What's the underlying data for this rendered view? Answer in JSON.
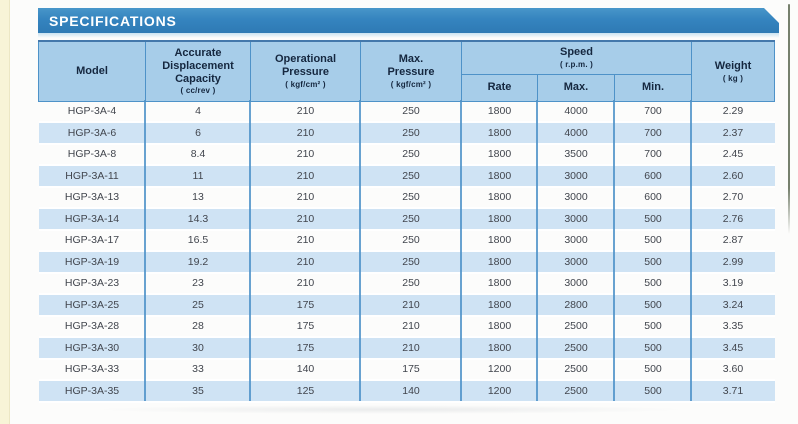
{
  "banner": {
    "title": "SPECIFICATIONS"
  },
  "colors": {
    "banner_blue": "#3584bf",
    "header_bg": "#a7cde9",
    "row_alt_bg": "#cfe3f4",
    "grid_line": "#4e92c8",
    "header_text": "#15273f",
    "left_stripe": "#f8f4d7"
  },
  "table": {
    "column_keys": [
      "model",
      "capacity",
      "operational-pressure",
      "max-pressure",
      "speed-rate",
      "speed-max",
      "speed-min",
      "weight"
    ],
    "header": {
      "model": "Model",
      "capacity": "Accurate\nDisplacement\nCapacity",
      "capacity_unit": "( cc/rev )",
      "operational_pressure": "Operational\nPressure",
      "operational_pressure_unit": "( kgf/cm² )",
      "max_pressure": "Max.\nPressure",
      "max_pressure_unit": "( kgf/cm² )",
      "speed": "Speed",
      "speed_unit": "( r.p.m. )",
      "speed_rate": "Rate",
      "speed_max": "Max.",
      "speed_min": "Min.",
      "weight": "Weight",
      "weight_unit": "( kg )"
    },
    "rows": [
      [
        "HGP-3A-4",
        "4",
        "210",
        "250",
        "1800",
        "4000",
        "700",
        "2.29"
      ],
      [
        "HGP-3A-6",
        "6",
        "210",
        "250",
        "1800",
        "4000",
        "700",
        "2.37"
      ],
      [
        "HGP-3A-8",
        "8.4",
        "210",
        "250",
        "1800",
        "3500",
        "700",
        "2.45"
      ],
      [
        "HGP-3A-11",
        "11",
        "210",
        "250",
        "1800",
        "3000",
        "600",
        "2.60"
      ],
      [
        "HGP-3A-13",
        "13",
        "210",
        "250",
        "1800",
        "3000",
        "600",
        "2.70"
      ],
      [
        "HGP-3A-14",
        "14.3",
        "210",
        "250",
        "1800",
        "3000",
        "500",
        "2.76"
      ],
      [
        "HGP-3A-17",
        "16.5",
        "210",
        "250",
        "1800",
        "3000",
        "500",
        "2.87"
      ],
      [
        "HGP-3A-19",
        "19.2",
        "210",
        "250",
        "1800",
        "3000",
        "500",
        "2.99"
      ],
      [
        "HGP-3A-23",
        "23",
        "210",
        "250",
        "1800",
        "3000",
        "500",
        "3.19"
      ],
      [
        "HGP-3A-25",
        "25",
        "175",
        "210",
        "1800",
        "2800",
        "500",
        "3.24"
      ],
      [
        "HGP-3A-28",
        "28",
        "175",
        "210",
        "1800",
        "2500",
        "500",
        "3.35"
      ],
      [
        "HGP-3A-30",
        "30",
        "175",
        "210",
        "1800",
        "2500",
        "500",
        "3.45"
      ],
      [
        "HGP-3A-33",
        "33",
        "140",
        "175",
        "1200",
        "2500",
        "500",
        "3.60"
      ],
      [
        "HGP-3A-35",
        "35",
        "125",
        "140",
        "1200",
        "2500",
        "500",
        "3.71"
      ]
    ]
  }
}
